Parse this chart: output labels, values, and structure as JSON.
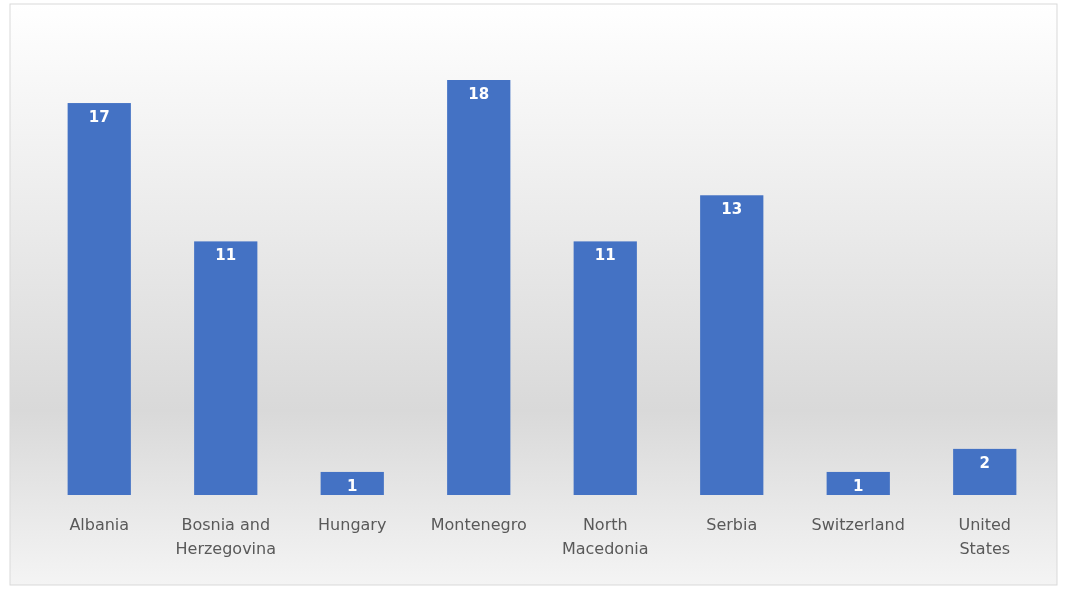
{
  "chart_data": {
    "type": "bar",
    "categories": [
      "Albania",
      "Bosnia and Herzegovina",
      "Hungary",
      "Montenegro",
      "North Macedonia",
      "Serbia",
      "Switzerland",
      "United States"
    ],
    "values": [
      17,
      11,
      1,
      18,
      11,
      13,
      1,
      2
    ],
    "color": "#4472c4",
    "data_labels": true
  }
}
